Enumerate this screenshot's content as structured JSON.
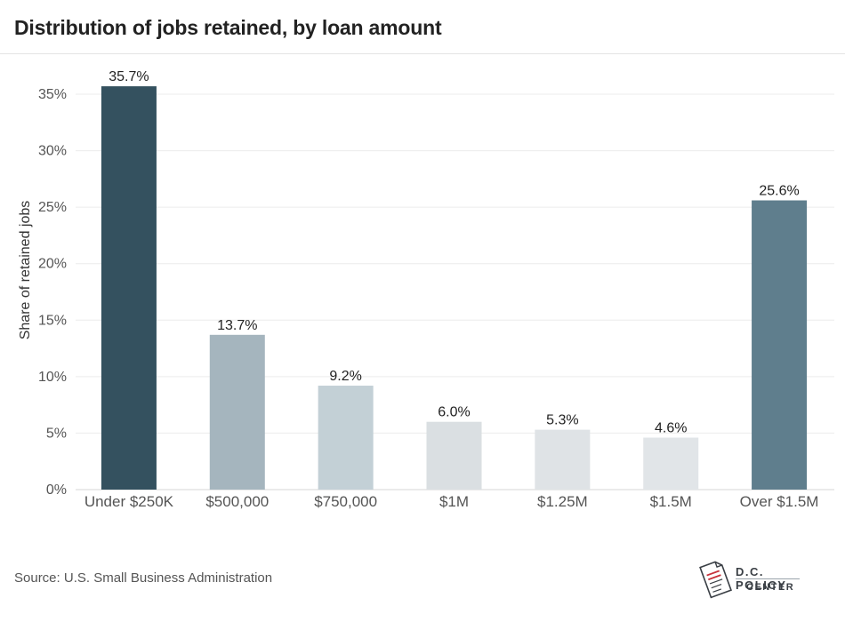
{
  "chart_data": {
    "type": "bar",
    "title": "Distribution of jobs retained, by loan amount",
    "ylabel": "Share of retained jobs",
    "xlabel": "",
    "categories": [
      "Under $250K",
      "$500,000",
      "$750,000",
      "$1M",
      "$1.25M",
      "$1.5M",
      "Over $1.5M"
    ],
    "values": [
      35.7,
      13.7,
      9.2,
      6.0,
      5.3,
      4.6,
      25.6
    ],
    "value_labels": [
      "35.7%",
      "13.7%",
      "9.2%",
      "6.0%",
      "5.3%",
      "4.6%",
      "25.6%"
    ],
    "bar_colors": [
      "#34515f",
      "#a5b5be",
      "#c3d0d6",
      "#dadfe2",
      "#dfe3e6",
      "#e1e5e8",
      "#5f7e8d"
    ],
    "ylim": [
      0,
      35
    ],
    "yticks": [
      0,
      5,
      10,
      15,
      20,
      25,
      30,
      35
    ],
    "ytick_labels": [
      "0%",
      "5%",
      "10%",
      "15%",
      "20%",
      "25%",
      "30%",
      "35%"
    ],
    "grid": true
  },
  "source": "Source: U.S. Small Business Administration",
  "logo": {
    "line1": "D.C. POLICY",
    "line2": "CENTER",
    "icon": "dc-map-document-icon"
  }
}
